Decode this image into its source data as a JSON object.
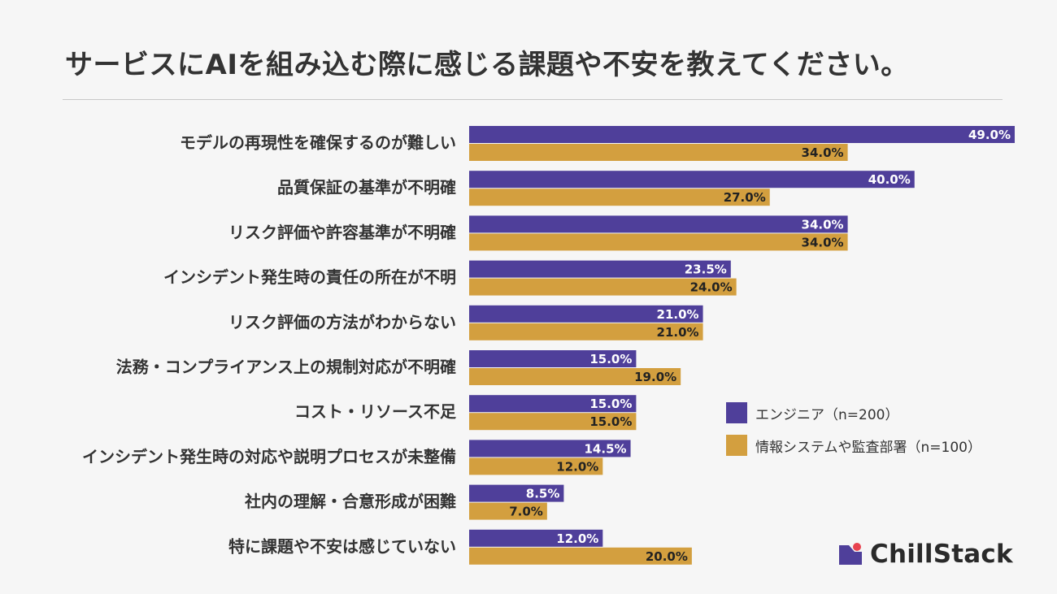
{
  "chart_data": {
    "type": "bar",
    "orientation": "horizontal",
    "title": "サービスにAIを組み込む際に感じる課題や不安を教えてください。",
    "categories": [
      "モデルの再現性を確保するのが難しい",
      "品質保証の基準が不明確",
      "リスク評価や許容基準が不明確",
      "インシデント発生時の責任の所在が不明",
      "リスク評価の方法がわからない",
      "法務・コンプライアンス上の規制対応が不明確",
      "コスト・リソース不足",
      "インシデント発生時の対応や説明プロセスが未整備",
      "社内の理解・合意形成が困難",
      "特に課題や不安は感じていない"
    ],
    "series": [
      {
        "name": "エンジニア（n=200）",
        "color": "#4f3f9a",
        "label_color": "#ffffff",
        "values": [
          49.0,
          40.0,
          34.0,
          23.5,
          21.0,
          15.0,
          15.0,
          14.5,
          8.5,
          12.0
        ],
        "labels": [
          "49.0%",
          "40.0%",
          "34.0%",
          "23.5%",
          "21.0%",
          "15.0%",
          "15.0%",
          "14.5%",
          "8.5%",
          "12.0%"
        ]
      },
      {
        "name": "情報システムや監査部署（n=100）",
        "color": "#d39f3f",
        "label_color": "#222222",
        "values": [
          34.0,
          27.0,
          34.0,
          24.0,
          21.0,
          19.0,
          15.0,
          12.0,
          7.0,
          20.0
        ],
        "labels": [
          "34.0%",
          "27.0%",
          "34.0%",
          "24.0%",
          "21.0%",
          "19.0%",
          "15.0%",
          "12.0%",
          "7.0%",
          "20.0%"
        ]
      }
    ],
    "xlim": [
      0,
      49
    ],
    "legend_position": "right",
    "grid": false
  },
  "brand": {
    "name": "ChillStack",
    "icon": "chillstack-logo-icon",
    "accent_color": "#e8424f"
  }
}
